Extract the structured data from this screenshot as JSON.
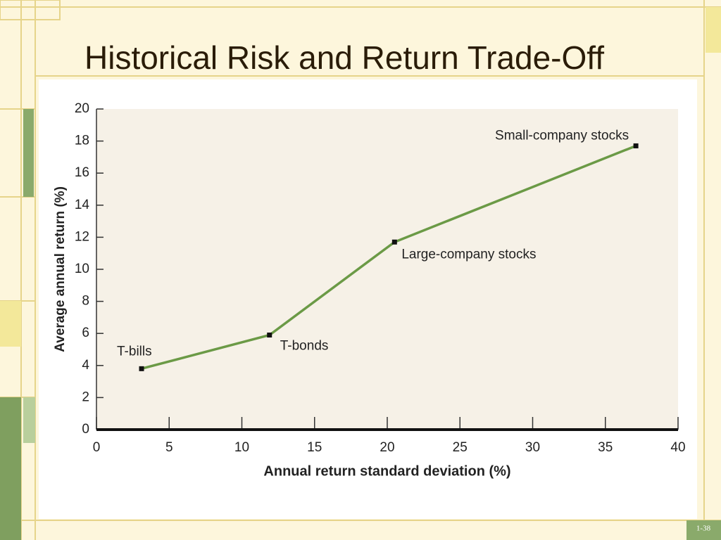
{
  "slide_title": "Historical Risk and Return Trade-Off",
  "slide_number": "1-38",
  "chart_data": {
    "type": "line",
    "x": [
      3.1,
      11.9,
      20.5,
      37.1
    ],
    "values": [
      3.8,
      5.9,
      11.7,
      17.7
    ],
    "point_labels": [
      "T-bills",
      "T-bonds",
      "Large-company stocks",
      "Small-company stocks"
    ],
    "color": "#6b9a46",
    "xlabel": "Annual return standard deviation (%)",
    "ylabel": "Average annual return (%)",
    "xlim": [
      0,
      40
    ],
    "xticks": [
      0,
      5,
      10,
      15,
      20,
      25,
      30,
      35,
      40
    ],
    "ylim": [
      0,
      20
    ],
    "yticks": [
      0,
      2,
      4,
      6,
      8,
      10,
      12,
      14,
      16,
      18,
      20
    ]
  }
}
